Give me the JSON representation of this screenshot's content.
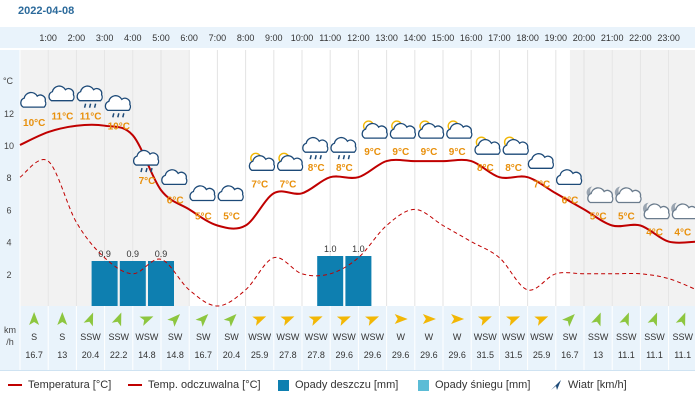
{
  "date": "2022-04-08",
  "colors": {
    "temperature": "#c00000",
    "feels_like": "#c00000",
    "rain": "#0e7fb0",
    "snow": "#5bbcd6",
    "wind_arrow": "#8dc63f",
    "wind_arrow_strong": "#f2b705",
    "header_bg": "#e9f3fb",
    "temp_label": "#e8900c"
  },
  "axis": {
    "unit_label": "°C",
    "wind_unit_label_1": "km",
    "wind_unit_label_2": "/h",
    "y_ticks": [
      "12",
      "10",
      "8",
      "6",
      "4",
      "2"
    ]
  },
  "chart_data": {
    "type": "line",
    "x_hours": [
      "1:00",
      "2:00",
      "3:00",
      "4:00",
      "5:00",
      "6:00",
      "7:00",
      "8:00",
      "9:00",
      "10:00",
      "11:00",
      "12:00",
      "13:00",
      "14:00",
      "15:00",
      "16:00",
      "17:00",
      "18:00",
      "19:00",
      "20:00",
      "21:00",
      "22:00",
      "23:00"
    ],
    "ylim": [
      0,
      14
    ],
    "temperature_line": {
      "hours": [
        0,
        1,
        2,
        3,
        4,
        5,
        6,
        7,
        8,
        9,
        10,
        11,
        12,
        13,
        14,
        15,
        16,
        17,
        18,
        19,
        20,
        21,
        22,
        23,
        24
      ],
      "values": [
        10,
        10.8,
        11.2,
        11.2,
        10.6,
        7.2,
        6,
        5,
        5,
        7,
        7,
        8,
        8,
        9,
        9,
        9,
        9,
        8,
        8,
        7,
        6,
        5,
        5,
        4,
        4
      ]
    },
    "feels_like_line": {
      "hours": [
        0,
        1,
        2,
        3,
        4,
        5,
        6,
        7,
        8,
        9,
        10,
        11,
        12,
        13,
        14,
        15,
        16,
        17,
        18,
        19,
        20,
        21,
        22,
        23,
        24
      ],
      "values": [
        8,
        9,
        5.2,
        3,
        2,
        2.9,
        1,
        0,
        1,
        3,
        2,
        2,
        3,
        5,
        6,
        5,
        4,
        3,
        1,
        2,
        2,
        2,
        2,
        1.7,
        1
      ]
    },
    "rain_bars": [
      {
        "hour": "3:00",
        "value": 0.9
      },
      {
        "hour": "4:00",
        "value": 0.9
      },
      {
        "hour": "5:00",
        "value": 0.9
      },
      {
        "hour": "11:00",
        "value": 1.0
      },
      {
        "hour": "12:00",
        "value": 1.0
      }
    ],
    "rain_labels": [
      "0.9",
      "0.9",
      "0.9",
      "1.0",
      "1.0"
    ],
    "icons": [
      {
        "hour": "1:00",
        "icon": "cloud-icon",
        "temp": "10°C"
      },
      {
        "hour": "2:00",
        "icon": "cloud-icon",
        "temp": "11°C"
      },
      {
        "hour": "3:00",
        "icon": "rain-cloud-icon",
        "temp": "11°C"
      },
      {
        "hour": "4:00",
        "icon": "rain-cloud-icon",
        "temp": "10°C"
      },
      {
        "hour": "5:00",
        "icon": "rain-cloud-icon",
        "temp": "7°C"
      },
      {
        "hour": "6:00",
        "icon": "cloud-icon",
        "temp": "6°C"
      },
      {
        "hour": "7:00",
        "icon": "cloud-icon",
        "temp": "5°C"
      },
      {
        "hour": "8:00",
        "icon": "cloud-icon",
        "temp": "5°C"
      },
      {
        "hour": "9:00",
        "icon": "sun-cloud-icon",
        "temp": "7°C"
      },
      {
        "hour": "10:00",
        "icon": "sun-cloud-icon",
        "temp": "7°C"
      },
      {
        "hour": "11:00",
        "icon": "rain-cloud-icon",
        "temp": "8°C"
      },
      {
        "hour": "12:00",
        "icon": "rain-cloud-icon",
        "temp": "8°C"
      },
      {
        "hour": "13:00",
        "icon": "sun-cloud-icon",
        "temp": "9°C"
      },
      {
        "hour": "14:00",
        "icon": "sun-cloud-icon",
        "temp": "9°C"
      },
      {
        "hour": "15:00",
        "icon": "sun-cloud-icon",
        "temp": "9°C"
      },
      {
        "hour": "16:00",
        "icon": "sun-cloud-icon",
        "temp": "9°C"
      },
      {
        "hour": "17:00",
        "icon": "sun-cloud-icon",
        "temp": "8°C"
      },
      {
        "hour": "18:00",
        "icon": "sun-cloud-icon",
        "temp": "8°C"
      },
      {
        "hour": "19:00",
        "icon": "cloud-icon",
        "temp": "7°C"
      },
      {
        "hour": "20:00",
        "icon": "cloud-icon",
        "temp": "6°C"
      },
      {
        "hour": "21:00",
        "icon": "moon-cloud-icon",
        "temp": "5°C"
      },
      {
        "hour": "22:00",
        "icon": "moon-cloud-icon",
        "temp": "5°C"
      },
      {
        "hour": "23:00",
        "icon": "moon-cloud-icon",
        "temp": "4°C"
      },
      {
        "hour": "24:00",
        "icon": "moon-cloud-icon",
        "temp": "4°C"
      }
    ],
    "wind": [
      {
        "dir": "S",
        "speed": "16.7",
        "arrow_deg": 0,
        "strong": false
      },
      {
        "dir": "S",
        "speed": "13",
        "arrow_deg": 0,
        "strong": false
      },
      {
        "dir": "SSW",
        "speed": "20.4",
        "arrow_deg": 22,
        "strong": false
      },
      {
        "dir": "SSW",
        "speed": "22.2",
        "arrow_deg": 22,
        "strong": false
      },
      {
        "dir": "WSW",
        "speed": "14.8",
        "arrow_deg": 68,
        "strong": false
      },
      {
        "dir": "SW",
        "speed": "14.8",
        "arrow_deg": 45,
        "strong": false
      },
      {
        "dir": "SW",
        "speed": "16.7",
        "arrow_deg": 45,
        "strong": false
      },
      {
        "dir": "SW",
        "speed": "20.4",
        "arrow_deg": 45,
        "strong": false
      },
      {
        "dir": "WSW",
        "speed": "25.9",
        "arrow_deg": 68,
        "strong": true
      },
      {
        "dir": "WSW",
        "speed": "27.8",
        "arrow_deg": 68,
        "strong": true
      },
      {
        "dir": "WSW",
        "speed": "27.8",
        "arrow_deg": 68,
        "strong": true
      },
      {
        "dir": "WSW",
        "speed": "29.6",
        "arrow_deg": 68,
        "strong": true
      },
      {
        "dir": "WSW",
        "speed": "29.6",
        "arrow_deg": 68,
        "strong": true
      },
      {
        "dir": "W",
        "speed": "29.6",
        "arrow_deg": 90,
        "strong": true
      },
      {
        "dir": "W",
        "speed": "29.6",
        "arrow_deg": 90,
        "strong": true
      },
      {
        "dir": "W",
        "speed": "29.6",
        "arrow_deg": 90,
        "strong": true
      },
      {
        "dir": "WSW",
        "speed": "31.5",
        "arrow_deg": 68,
        "strong": true
      },
      {
        "dir": "WSW",
        "speed": "31.5",
        "arrow_deg": 68,
        "strong": true
      },
      {
        "dir": "WSW",
        "speed": "25.9",
        "arrow_deg": 68,
        "strong": true
      },
      {
        "dir": "SW",
        "speed": "16.7",
        "arrow_deg": 45,
        "strong": false
      },
      {
        "dir": "SSW",
        "speed": "13",
        "arrow_deg": 22,
        "strong": false
      },
      {
        "dir": "SSW",
        "speed": "11.1",
        "arrow_deg": 22,
        "strong": false
      },
      {
        "dir": "SSW",
        "speed": "11.1",
        "arrow_deg": 22,
        "strong": false
      },
      {
        "dir": "SSW",
        "speed": "11.1",
        "arrow_deg": 22,
        "strong": false
      }
    ]
  },
  "legend": {
    "temperature": "Temperatura [°C]",
    "feels_like": "Temp. odczuwalna [°C]",
    "rain": "Opady deszczu [mm]",
    "snow": "Opady śniegu [mm]",
    "wind": "Wiatr [km/h]"
  }
}
